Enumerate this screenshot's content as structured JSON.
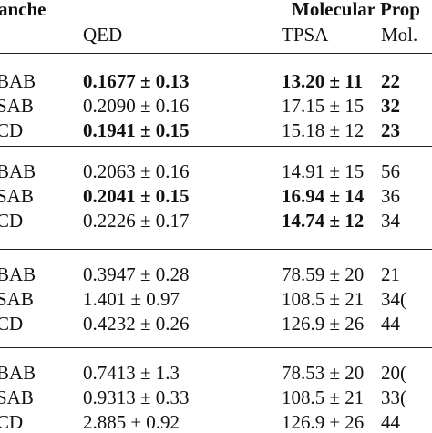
{
  "header": {
    "group_left": "anche",
    "group_right": "Molecular Prop",
    "columns": [
      "QED",
      "TPSA",
      "Mol."
    ]
  },
  "sections": [
    {
      "rows": [
        {
          "method": "BAB",
          "qed": "0.1677 ± 0.13",
          "tpsa": "13.20 ± 11",
          "mol": "22",
          "qed_bold": true,
          "tpsa_bold": true,
          "mol_bold": true
        },
        {
          "method": "SAB",
          "qed": "0.2090 ± 0.16",
          "tpsa": "17.15 ± 15",
          "mol": "32",
          "qed_bold": false,
          "tpsa_bold": false,
          "mol_bold": true
        },
        {
          "method": "CD",
          "qed": "0.1941 ± 0.15",
          "tpsa": "15.18 ± 12",
          "mol": "23",
          "qed_bold": true,
          "tpsa_bold": false,
          "mol_bold": true
        }
      ]
    },
    {
      "rows": [
        {
          "method": "BAB",
          "qed": "0.2063 ± 0.16",
          "tpsa": "14.91 ± 15",
          "mol": "56",
          "qed_bold": false,
          "tpsa_bold": false,
          "mol_bold": false
        },
        {
          "method": "SAB",
          "qed": "0.2041 ± 0.15",
          "tpsa": "16.94 ± 14",
          "mol": "36",
          "qed_bold": true,
          "tpsa_bold": true,
          "mol_bold": false
        },
        {
          "method": "CD",
          "qed": "0.2226 ± 0.17",
          "tpsa": "14.74 ± 12",
          "mol": "34",
          "qed_bold": false,
          "tpsa_bold": true,
          "mol_bold": false
        }
      ]
    },
    {
      "rows": [
        {
          "method": "BAB",
          "qed": "0.3947 ± 0.28",
          "tpsa": "78.59 ± 20",
          "mol": "21",
          "qed_bold": false,
          "tpsa_bold": false,
          "mol_bold": false
        },
        {
          "method": "SAB",
          "qed": "1.401 ± 0.97",
          "tpsa": "108.5 ± 21",
          "mol": "34(",
          "qed_bold": false,
          "tpsa_bold": false,
          "mol_bold": false
        },
        {
          "method": "CD",
          "qed": "0.4232 ± 0.26",
          "tpsa": "126.9 ± 26",
          "mol": "44",
          "qed_bold": false,
          "tpsa_bold": false,
          "mol_bold": false
        }
      ]
    },
    {
      "rows": [
        {
          "method": "BAB",
          "qed": "0.7413 ± 1.3",
          "tpsa": "78.53 ± 20",
          "mol": "20(",
          "qed_bold": false,
          "tpsa_bold": false,
          "mol_bold": false
        },
        {
          "method": "SAB",
          "qed": "0.9313 ± 0.33",
          "tpsa": "108.5 ± 21",
          "mol": "33(",
          "qed_bold": false,
          "tpsa_bold": false,
          "mol_bold": false
        },
        {
          "method": "CD",
          "qed": "2.885 ± 0.92",
          "tpsa": "126.9 ± 26",
          "mol": "44",
          "qed_bold": false,
          "tpsa_bold": false,
          "mol_bold": false
        }
      ]
    }
  ]
}
